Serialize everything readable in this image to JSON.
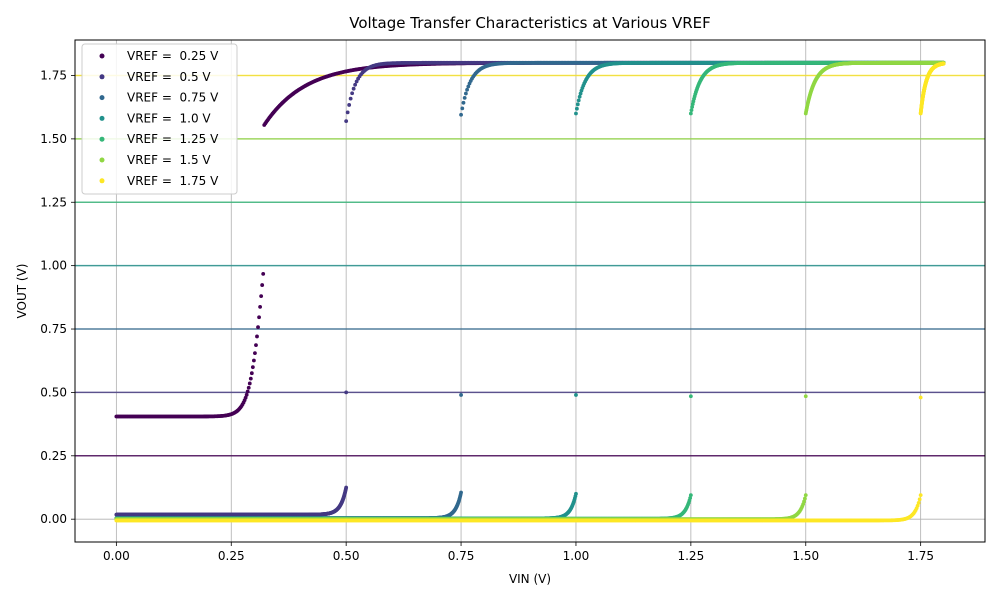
{
  "chart_data": {
    "type": "scatter",
    "title": "Voltage Transfer Characteristics at Various VREF",
    "xlabel": "VIN (V)",
    "ylabel": "VOUT (V)",
    "xlim": [
      -0.09,
      1.89
    ],
    "ylim": [
      -0.09,
      1.89
    ],
    "xticks": [
      "0.00",
      "0.25",
      "0.50",
      "0.75",
      "1.00",
      "1.25",
      "1.50",
      "1.75"
    ],
    "yticks": [
      "0.00",
      "0.25",
      "0.50",
      "0.75",
      "1.00",
      "1.25",
      "1.50",
      "1.75"
    ],
    "grid": true,
    "legend_position": "top-left",
    "vin_max": 1.8,
    "vdd": 1.8,
    "series": [
      {
        "name": "VREF =  0.25 V",
        "vref": 0.25,
        "color": "#440154",
        "low": 0.405,
        "mid": 0.32
      },
      {
        "name": "VREF =  0.5 V",
        "vref": 0.5,
        "color": "#443983",
        "low": 0.018,
        "spike": 0.125,
        "mid_point": 0.5,
        "jump": 1.57
      },
      {
        "name": "VREF =  0.75 V",
        "vref": 0.75,
        "color": "#31688e",
        "low": 0.004,
        "spike": 0.105,
        "mid_point": 0.49,
        "jump": 1.595
      },
      {
        "name": "VREF =  1.0 V",
        "vref": 1.0,
        "color": "#21918c",
        "low": 0.003,
        "spike": 0.1,
        "mid_point": 0.49,
        "jump": 1.6
      },
      {
        "name": "VREF =  1.25 V",
        "vref": 1.25,
        "color": "#35b779",
        "low": 0.002,
        "spike": 0.095,
        "mid_point": 0.485,
        "jump": 1.6
      },
      {
        "name": "VREF =  1.5 V",
        "vref": 1.5,
        "color": "#90d743",
        "low": 0.0,
        "spike": 0.095,
        "mid_point": 0.485,
        "jump": 1.6
      },
      {
        "name": "VREF =  1.75 V",
        "vref": 1.75,
        "color": "#fde725",
        "low": -0.005,
        "spike": 0.095,
        "mid_point": 0.48,
        "jump": 1.6
      }
    ]
  }
}
